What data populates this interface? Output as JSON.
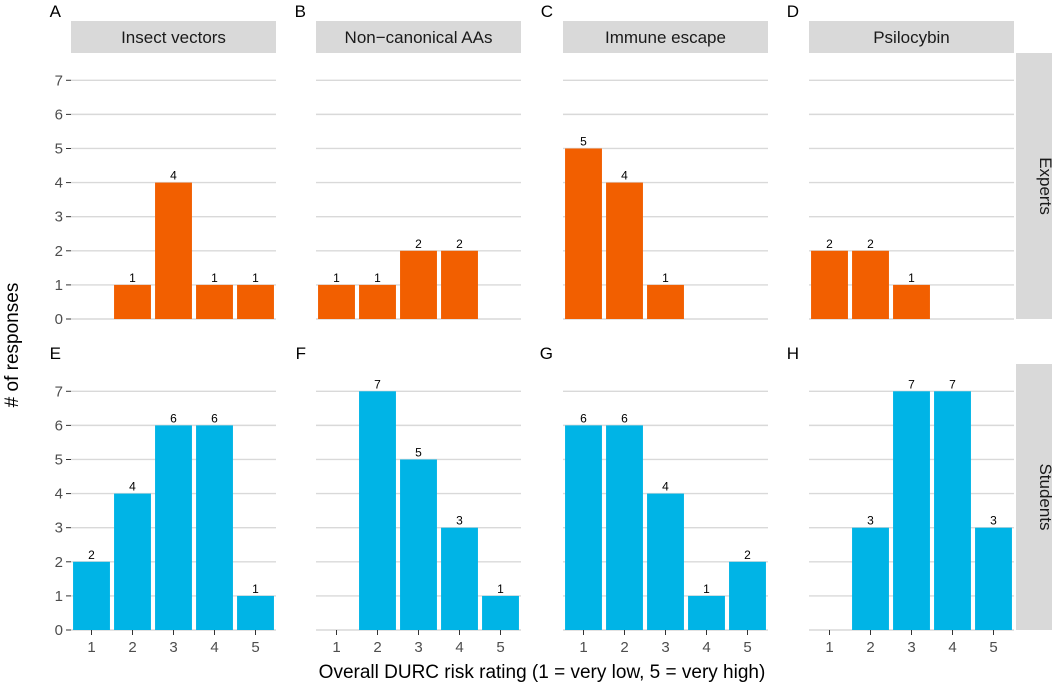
{
  "figure": {
    "ylabel": "# of responses",
    "xlabel": "Overall DURC risk rating (1 = very low, 5 = very high)"
  },
  "colors": {
    "experts": "#F25F00",
    "students": "#00B4E6",
    "strip_background": "#D9D9D9",
    "gridline": "#D9D9D9",
    "tick_text": "#4D4D4D"
  },
  "chart_data": {
    "type": "bar",
    "facet_columns": [
      "Insect vectors",
      "Non−canonical AAs",
      "Immune escape",
      "Psilocybin"
    ],
    "facet_rows": [
      "Experts",
      "Students"
    ],
    "categories": [
      1,
      2,
      3,
      4,
      5
    ],
    "category_labels": [
      "1",
      "2",
      "3",
      "4",
      "5"
    ],
    "ylim": [
      0,
      7.8
    ],
    "yticks": [
      0,
      1,
      2,
      3,
      4,
      5,
      6,
      7
    ],
    "ytick_labels": [
      "0",
      "1",
      "2",
      "3",
      "4",
      "5",
      "6",
      "7"
    ],
    "xlabel": "Overall DURC risk rating (1 = very low, 5 = very high)",
    "ylabel": "# of responses",
    "grid": true,
    "panels": [
      {
        "tag": "A",
        "column": "Insect vectors",
        "group": "Experts",
        "values": [
          0,
          1,
          4,
          1,
          1
        ]
      },
      {
        "tag": "B",
        "column": "Non−canonical AAs",
        "group": "Experts",
        "values": [
          1,
          1,
          2,
          2,
          0
        ]
      },
      {
        "tag": "C",
        "column": "Immune escape",
        "group": "Experts",
        "values": [
          5,
          4,
          1,
          0,
          0
        ]
      },
      {
        "tag": "D",
        "column": "Psilocybin",
        "group": "Experts",
        "values": [
          2,
          2,
          1,
          0,
          0
        ]
      },
      {
        "tag": "E",
        "column": "Insect vectors",
        "group": "Students",
        "values": [
          2,
          4,
          6,
          6,
          1
        ]
      },
      {
        "tag": "F",
        "column": "Non−canonical AAs",
        "group": "Students",
        "values": [
          0,
          7,
          5,
          3,
          1
        ]
      },
      {
        "tag": "G",
        "column": "Immune escape",
        "group": "Students",
        "values": [
          6,
          6,
          4,
          1,
          2
        ]
      },
      {
        "tag": "H",
        "column": "Psilocybin",
        "group": "Students",
        "values": [
          0,
          3,
          7,
          7,
          3
        ]
      }
    ]
  }
}
